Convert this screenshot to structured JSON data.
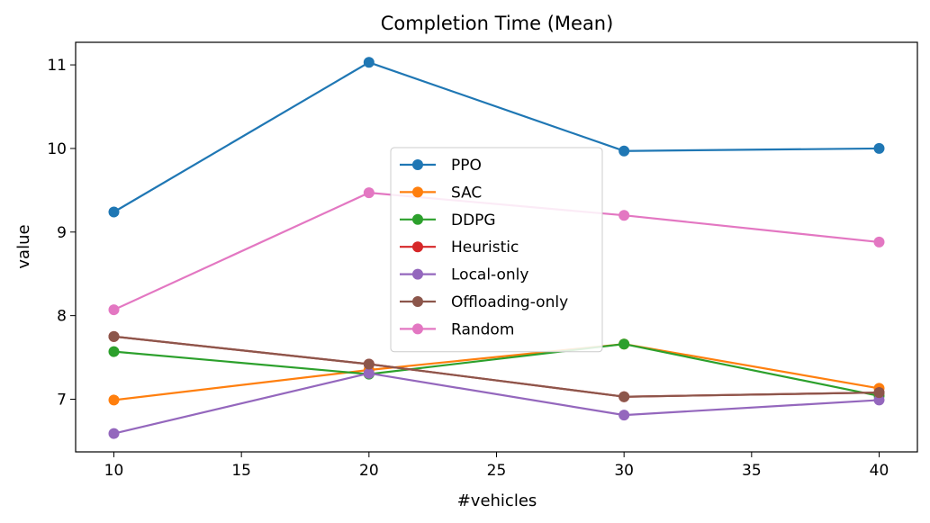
{
  "chart_data": {
    "type": "line",
    "title": "Completion Time (Mean)",
    "xlabel": "#vehicles",
    "ylabel": "value",
    "x": [
      10,
      20,
      30,
      40
    ],
    "xlim": [
      8.5,
      41.5
    ],
    "ylim": [
      6.37,
      11.27
    ],
    "xticks": [
      10,
      15,
      20,
      25,
      30,
      35,
      40
    ],
    "yticks": [
      7,
      8,
      9,
      10,
      11
    ],
    "grid": false,
    "legend_position": "center",
    "series": [
      {
        "name": "PPO",
        "color": "#1f77b4",
        "values": [
          9.24,
          11.03,
          9.97,
          10.0
        ]
      },
      {
        "name": "SAC",
        "color": "#ff7f0e",
        "values": [
          6.99,
          7.35,
          7.66,
          7.13
        ]
      },
      {
        "name": "DDPG",
        "color": "#2ca02c",
        "values": [
          7.57,
          7.3,
          7.66,
          7.04
        ]
      },
      {
        "name": "Heuristic",
        "color": "#d62728",
        "values": [
          7.75,
          7.42,
          7.03,
          7.08
        ]
      },
      {
        "name": "Local-only",
        "color": "#9467bd",
        "values": [
          6.59,
          7.31,
          6.81,
          6.99
        ]
      },
      {
        "name": "Offloading-only",
        "color": "#8c564b",
        "values": [
          7.75,
          7.42,
          7.03,
          7.08
        ]
      },
      {
        "name": "Random",
        "color": "#e377c2",
        "values": [
          8.07,
          9.47,
          9.2,
          8.88
        ]
      }
    ]
  }
}
